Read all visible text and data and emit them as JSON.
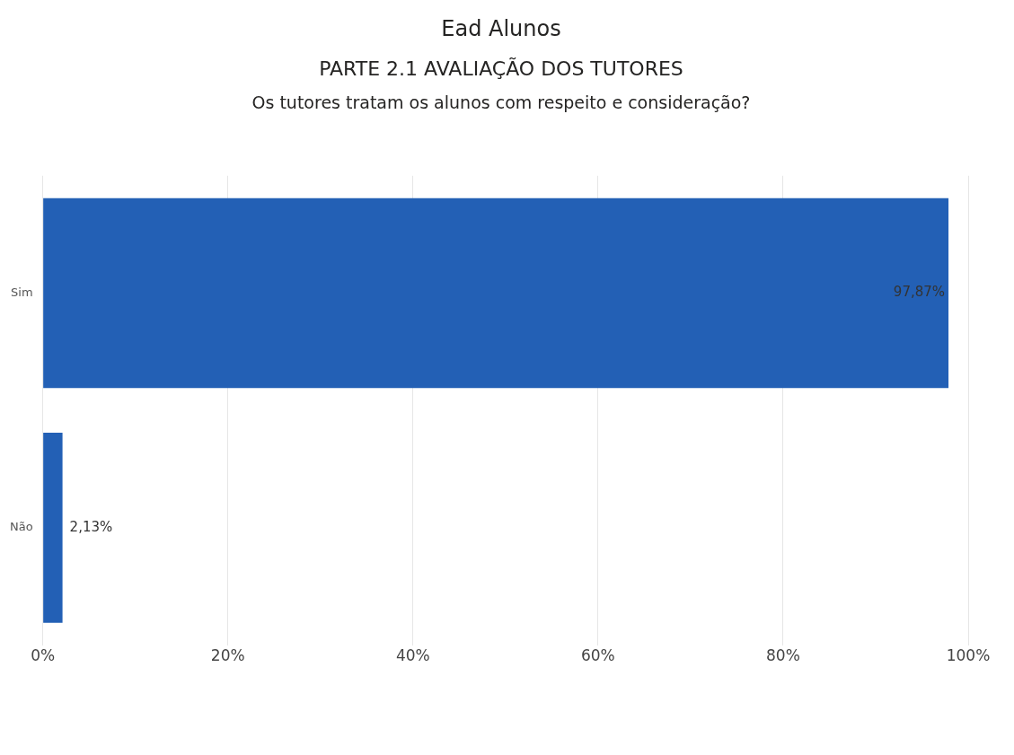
{
  "chart_data": {
    "type": "bar",
    "orientation": "horizontal",
    "title": "Ead Alunos",
    "subtitle": "PARTE 2.1 AVALIAÇÃO DOS TUTORES",
    "annotations": [
      "Os tutores tratam os alunos com respeito e consideração?"
    ],
    "categories": [
      "Sim",
      "Não"
    ],
    "values": [
      97.87,
      2.13
    ],
    "value_labels": [
      "97,87%",
      "2,13%"
    ],
    "color": "#2360b5",
    "xlim": [
      0,
      100
    ],
    "xticks": [
      {
        "value": 0,
        "label": "0%"
      },
      {
        "value": 20,
        "label": "20%"
      },
      {
        "value": 40,
        "label": "40%"
      },
      {
        "value": 60,
        "label": "60%"
      },
      {
        "value": 80,
        "label": "80%"
      },
      {
        "value": 100,
        "label": "100%"
      }
    ],
    "grid": "x"
  }
}
